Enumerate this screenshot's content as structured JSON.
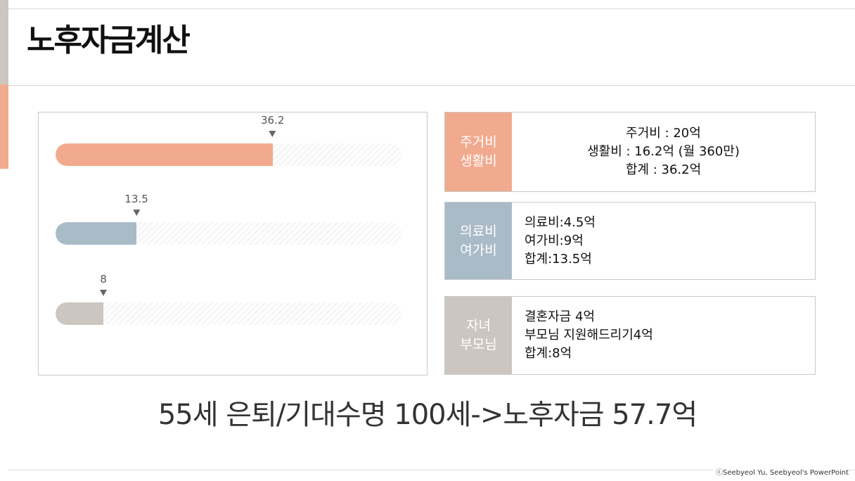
{
  "title": "노후자금계산",
  "colors": {
    "salmon": "#f2aa8e",
    "blue_gray": "#aabbc8",
    "taupe": "#cdc6c0"
  },
  "chart_data": {
    "type": "bar",
    "orientation": "horizontal",
    "max": 57.7,
    "categories": [
      "주거비 생활비",
      "의료비 여가비",
      "자녀 부모님"
    ],
    "values": [
      36.2,
      13.5,
      8
    ],
    "labels": [
      "36.2",
      "13.5",
      "8"
    ],
    "colors": [
      "#f2aa8e",
      "#aabbc8",
      "#cdc6c0"
    ]
  },
  "boxes": [
    {
      "label_line1": "주거비",
      "label_line2": "생활비",
      "lines": [
        "주거비 : 20억",
        "생활비 : 16.2억 (월 360만)",
        "합계 : 36.2억"
      ]
    },
    {
      "label_line1": "의료비",
      "label_line2": "여가비",
      "lines": [
        "의료비:4.5억",
        "여가비:9억",
        "합계:13.5억"
      ]
    },
    {
      "label_line1": "자녀",
      "label_line2": "부모님",
      "lines": [
        "결혼자금 4억",
        "부모님 지원해드리기4억",
        "합계:8억"
      ]
    }
  ],
  "summary": "55세 은퇴/기대수명 100세->노후자금 57.7억",
  "copyright": "ⓒSeebyeol Yu, Seebyeol's PowerPoint"
}
